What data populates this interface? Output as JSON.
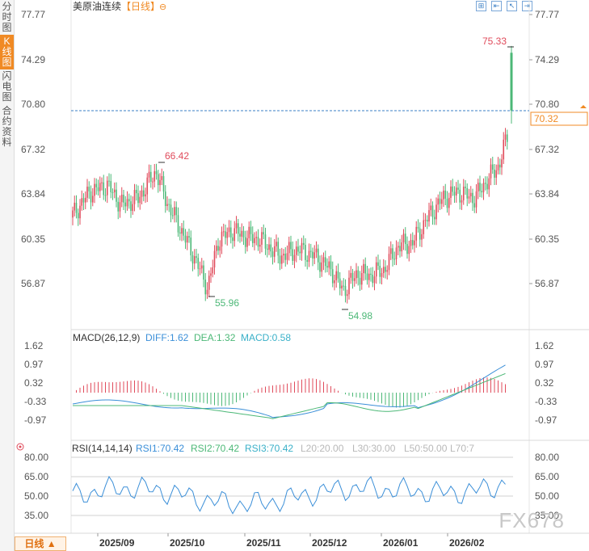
{
  "sidebar": {
    "tabs": [
      {
        "label": "分时图",
        "active": false
      },
      {
        "label": "K线图",
        "active": true
      },
      {
        "label": "闪电图",
        "active": false
      },
      {
        "label": "合约资料",
        "active": false
      }
    ]
  },
  "header": {
    "title": "美原油连续",
    "period": "【日线】",
    "toggle_icon": "⊖"
  },
  "toolbar": {
    "icons": [
      "fit-icon",
      "range-icon",
      "cursor-icon",
      "back-icon"
    ]
  },
  "price_chart": {
    "y_ticks": [
      "77.77",
      "74.29",
      "70.80",
      "67.32",
      "63.84",
      "60.35",
      "56.87"
    ],
    "current_price": "70.32",
    "high_label": "75.33",
    "peak_label": "66.42",
    "low1_label": "55.96",
    "low2_label": "54.98",
    "up_color": "#e04b5b",
    "down_color": "#4cb877"
  },
  "macd": {
    "title": "MACD(26,12,9)",
    "diff": "DIFF:1.62",
    "dea": "DEA:1.32",
    "macd": "MACD:0.58",
    "y_ticks": [
      "1.62",
      "0.97",
      "0.32",
      "-0.33",
      "-0.97"
    ]
  },
  "rsi": {
    "title": "RSI(14,14,14)",
    "rsi1": "RSI1:70.42",
    "rsi2": "RSI2:70.42",
    "rsi3": "RSI3:70.42",
    "l20": "L20:20.00",
    "l30": "L30:30.00",
    "l50": "L50:50.00",
    "l70": "L70:7",
    "y_ticks": [
      "80.00",
      "65.00",
      "50.00",
      "35.00"
    ]
  },
  "x_labels": [
    "2025/09",
    "2025/10",
    "2025/11",
    "2025/12",
    "2026/01",
    "2026/02"
  ],
  "footer": {
    "period_tab": "日线 ▲"
  },
  "watermark": "FX678",
  "chart_data": {
    "type": "candlestick",
    "title": "美原油连续",
    "series": [
      {
        "name": "close",
        "x": [
          "2025/09",
          "2025/10",
          "2025/11",
          "2025/12",
          "2026/01",
          "2026/02"
        ],
        "values": [
          64.5,
          61.0,
          59.5,
          58.0,
          58.5,
          67.0
        ]
      }
    ],
    "annotations": {
      "high": 75.33,
      "peak": 66.42,
      "low1": 55.96,
      "low2": 54.98,
      "last": 70.32
    },
    "ylim": [
      56.87,
      77.77
    ]
  }
}
